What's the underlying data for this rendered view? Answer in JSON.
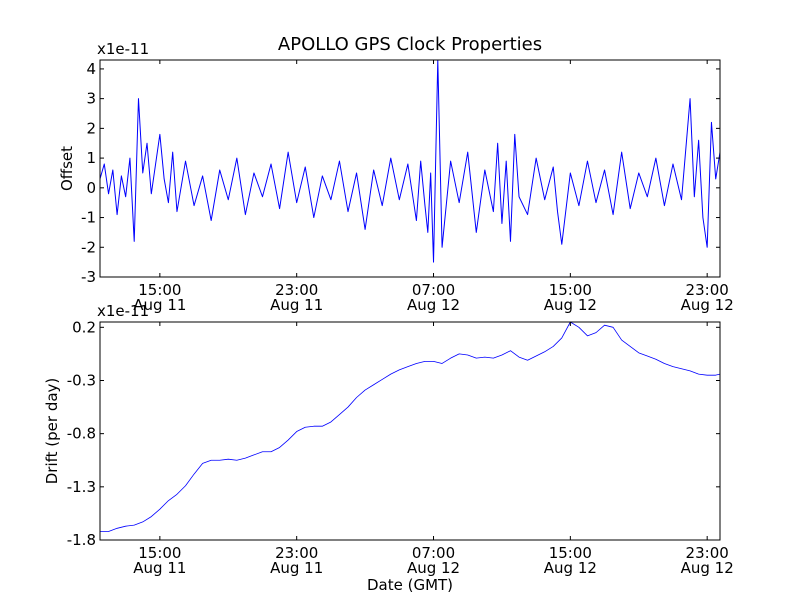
{
  "figure": {
    "title": "APOLLO GPS Clock Properties",
    "xlabel": "Date (GMT)"
  },
  "chart_data": [
    {
      "type": "line",
      "ylabel": "Offset",
      "y_multiplier": "x1e-11",
      "ylim": [
        -3,
        4.3
      ],
      "y_ticks": [
        {
          "value": -3,
          "label": "-3"
        },
        {
          "value": -2,
          "label": "-2"
        },
        {
          "value": -1,
          "label": "-1"
        },
        {
          "value": 0,
          "label": "0"
        },
        {
          "value": 1,
          "label": "1"
        },
        {
          "value": 2,
          "label": "2"
        },
        {
          "value": 3,
          "label": "3"
        },
        {
          "value": 4,
          "label": "4"
        }
      ],
      "xlim": [
        "2013-08-11T11:30",
        "2013-08-12T23:45"
      ],
      "x_ticks": [
        {
          "value": "2013-08-11T15:00",
          "time": "15:00",
          "date": "Aug 11"
        },
        {
          "value": "2013-08-11T23:00",
          "time": "23:00",
          "date": "Aug 11"
        },
        {
          "value": "2013-08-12T07:00",
          "time": "07:00",
          "date": "Aug 12"
        },
        {
          "value": "2013-08-12T15:00",
          "time": "15:00",
          "date": "Aug 12"
        },
        {
          "value": "2013-08-12T23:00",
          "time": "23:00",
          "date": "Aug 12"
        }
      ],
      "grid": false,
      "color": "#0000ff",
      "series": [
        {
          "x": [
            "2013-08-11T11:30",
            "2013-08-11T11:45",
            "2013-08-11T12:00",
            "2013-08-11T12:15",
            "2013-08-11T12:30",
            "2013-08-11T12:45",
            "2013-08-11T13:00",
            "2013-08-11T13:15",
            "2013-08-11T13:30",
            "2013-08-11T13:45",
            "2013-08-11T14:00",
            "2013-08-11T14:15",
            "2013-08-11T14:30",
            "2013-08-11T14:45",
            "2013-08-11T15:00",
            "2013-08-11T15:15",
            "2013-08-11T15:30",
            "2013-08-11T15:45",
            "2013-08-11T16:00",
            "2013-08-11T16:30",
            "2013-08-11T17:00",
            "2013-08-11T17:30",
            "2013-08-11T18:00",
            "2013-08-11T18:30",
            "2013-08-11T19:00",
            "2013-08-11T19:30",
            "2013-08-11T20:00",
            "2013-08-11T20:30",
            "2013-08-11T21:00",
            "2013-08-11T21:30",
            "2013-08-11T22:00",
            "2013-08-11T22:30",
            "2013-08-11T23:00",
            "2013-08-11T23:30",
            "2013-08-12T00:00",
            "2013-08-12T00:30",
            "2013-08-12T01:00",
            "2013-08-12T01:30",
            "2013-08-12T02:00",
            "2013-08-12T02:30",
            "2013-08-12T03:00",
            "2013-08-12T03:30",
            "2013-08-12T04:00",
            "2013-08-12T04:30",
            "2013-08-12T05:00",
            "2013-08-12T05:30",
            "2013-08-12T06:00",
            "2013-08-12T06:15",
            "2013-08-12T06:30",
            "2013-08-12T06:40",
            "2013-08-12T06:50",
            "2013-08-12T07:00",
            "2013-08-12T07:15",
            "2013-08-12T07:30",
            "2013-08-12T08:00",
            "2013-08-12T08:30",
            "2013-08-12T09:00",
            "2013-08-12T09:30",
            "2013-08-12T10:00",
            "2013-08-12T10:30",
            "2013-08-12T10:45",
            "2013-08-12T11:00",
            "2013-08-12T11:15",
            "2013-08-12T11:30",
            "2013-08-12T11:45",
            "2013-08-12T12:00",
            "2013-08-12T12:30",
            "2013-08-12T13:00",
            "2013-08-12T13:30",
            "2013-08-12T14:00",
            "2013-08-12T14:15",
            "2013-08-12T14:30",
            "2013-08-12T15:00",
            "2013-08-12T15:30",
            "2013-08-12T16:00",
            "2013-08-12T16:30",
            "2013-08-12T17:00",
            "2013-08-12T17:30",
            "2013-08-12T18:00",
            "2013-08-12T18:30",
            "2013-08-12T19:00",
            "2013-08-12T19:30",
            "2013-08-12T20:00",
            "2013-08-12T20:30",
            "2013-08-12T21:00",
            "2013-08-12T21:30",
            "2013-08-12T22:00",
            "2013-08-12T22:15",
            "2013-08-12T22:30",
            "2013-08-12T22:45",
            "2013-08-12T23:00",
            "2013-08-12T23:15",
            "2013-08-12T23:30",
            "2013-08-12T23:45"
          ],
          "y": [
            0.3,
            0.8,
            -0.2,
            0.6,
            -0.9,
            0.4,
            -0.3,
            1.0,
            -1.8,
            3.0,
            0.5,
            1.5,
            -0.2,
            0.8,
            1.8,
            0.3,
            -0.5,
            1.2,
            -0.8,
            0.9,
            -0.6,
            0.4,
            -1.1,
            0.6,
            -0.4,
            1.0,
            -0.9,
            0.5,
            -0.3,
            0.8,
            -0.7,
            1.2,
            -0.5,
            0.7,
            -1.0,
            0.4,
            -0.4,
            0.9,
            -0.8,
            0.5,
            -1.4,
            0.6,
            -0.6,
            1.0,
            -0.4,
            0.8,
            -1.1,
            0.9,
            -0.6,
            -1.5,
            0.5,
            -2.5,
            4.3,
            -2.0,
            0.9,
            -0.5,
            1.2,
            -1.5,
            0.6,
            -0.8,
            1.5,
            -1.2,
            0.9,
            -1.8,
            1.8,
            -0.3,
            -0.9,
            1.0,
            -0.4,
            0.7,
            -0.8,
            -1.9,
            0.5,
            -0.6,
            0.9,
            -0.5,
            0.6,
            -0.9,
            1.2,
            -0.7,
            0.5,
            -0.3,
            1.0,
            -0.6,
            0.8,
            -0.4,
            3.0,
            -0.3,
            1.6,
            -1.0,
            -2.0,
            2.2,
            0.3,
            1.2
          ]
        }
      ]
    },
    {
      "type": "line",
      "ylabel": "Drift (per day)",
      "y_multiplier": "x1e-11",
      "ylim": [
        -1.8,
        0.25
      ],
      "y_ticks": [
        {
          "value": -1.8,
          "label": "-1.8"
        },
        {
          "value": -1.3,
          "label": "-1.3"
        },
        {
          "value": -0.8,
          "label": "-0.8"
        },
        {
          "value": -0.3,
          "label": "-0.3"
        },
        {
          "value": 0.2,
          "label": "0.2"
        }
      ],
      "xlim": [
        "2013-08-11T11:30",
        "2013-08-12T23:45"
      ],
      "x_ticks": [
        {
          "value": "2013-08-11T15:00",
          "time": "15:00",
          "date": "Aug 11"
        },
        {
          "value": "2013-08-11T23:00",
          "time": "23:00",
          "date": "Aug 11"
        },
        {
          "value": "2013-08-12T07:00",
          "time": "07:00",
          "date": "Aug 12"
        },
        {
          "value": "2013-08-12T15:00",
          "time": "15:00",
          "date": "Aug 12"
        },
        {
          "value": "2013-08-12T23:00",
          "time": "23:00",
          "date": "Aug 12"
        }
      ],
      "grid": false,
      "color": "#0000ff",
      "series": [
        {
          "x": [
            "2013-08-11T11:30",
            "2013-08-11T12:00",
            "2013-08-11T12:30",
            "2013-08-11T13:00",
            "2013-08-11T13:30",
            "2013-08-11T14:00",
            "2013-08-11T14:30",
            "2013-08-11T15:00",
            "2013-08-11T15:30",
            "2013-08-11T16:00",
            "2013-08-11T16:30",
            "2013-08-11T17:00",
            "2013-08-11T17:30",
            "2013-08-11T18:00",
            "2013-08-11T18:30",
            "2013-08-11T19:00",
            "2013-08-11T19:30",
            "2013-08-11T20:00",
            "2013-08-11T20:30",
            "2013-08-11T21:00",
            "2013-08-11T21:30",
            "2013-08-11T22:00",
            "2013-08-11T22:30",
            "2013-08-11T23:00",
            "2013-08-11T23:30",
            "2013-08-12T00:00",
            "2013-08-12T00:30",
            "2013-08-12T01:00",
            "2013-08-12T01:30",
            "2013-08-12T02:00",
            "2013-08-12T02:30",
            "2013-08-12T03:00",
            "2013-08-12T03:30",
            "2013-08-12T04:00",
            "2013-08-12T04:30",
            "2013-08-12T05:00",
            "2013-08-12T05:30",
            "2013-08-12T06:00",
            "2013-08-12T06:30",
            "2013-08-12T07:00",
            "2013-08-12T07:30",
            "2013-08-12T08:00",
            "2013-08-12T08:30",
            "2013-08-12T09:00",
            "2013-08-12T09:30",
            "2013-08-12T10:00",
            "2013-08-12T10:30",
            "2013-08-12T11:00",
            "2013-08-12T11:30",
            "2013-08-12T12:00",
            "2013-08-12T12:30",
            "2013-08-12T13:00",
            "2013-08-12T13:30",
            "2013-08-12T14:00",
            "2013-08-12T14:30",
            "2013-08-12T15:00",
            "2013-08-12T15:30",
            "2013-08-12T16:00",
            "2013-08-12T16:30",
            "2013-08-12T17:00",
            "2013-08-12T17:30",
            "2013-08-12T18:00",
            "2013-08-12T18:30",
            "2013-08-12T19:00",
            "2013-08-12T19:30",
            "2013-08-12T20:00",
            "2013-08-12T20:30",
            "2013-08-12T21:00",
            "2013-08-12T21:30",
            "2013-08-12T22:00",
            "2013-08-12T22:30",
            "2013-08-12T23:00",
            "2013-08-12T23:30",
            "2013-08-12T23:45"
          ],
          "y": [
            -1.72,
            -1.72,
            -1.69,
            -1.67,
            -1.66,
            -1.63,
            -1.58,
            -1.51,
            -1.43,
            -1.37,
            -1.29,
            -1.18,
            -1.08,
            -1.05,
            -1.05,
            -1.04,
            -1.05,
            -1.03,
            -1.0,
            -0.97,
            -0.97,
            -0.93,
            -0.86,
            -0.78,
            -0.74,
            -0.73,
            -0.73,
            -0.69,
            -0.62,
            -0.55,
            -0.46,
            -0.39,
            -0.34,
            -0.29,
            -0.24,
            -0.2,
            -0.17,
            -0.14,
            -0.12,
            -0.12,
            -0.14,
            -0.09,
            -0.05,
            -0.06,
            -0.09,
            -0.08,
            -0.09,
            -0.06,
            -0.02,
            -0.08,
            -0.11,
            -0.07,
            -0.03,
            0.02,
            0.1,
            0.25,
            0.2,
            0.12,
            0.15,
            0.22,
            0.2,
            0.08,
            0.02,
            -0.04,
            -0.07,
            -0.1,
            -0.14,
            -0.17,
            -0.19,
            -0.21,
            -0.24,
            -0.25,
            -0.25,
            -0.24
          ]
        }
      ]
    }
  ]
}
